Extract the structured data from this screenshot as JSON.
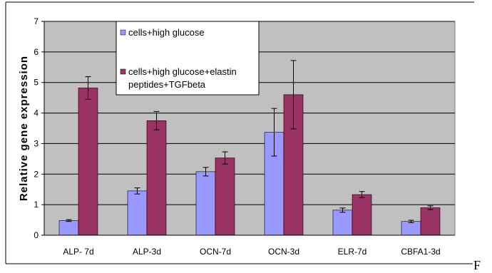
{
  "chart_data": {
    "type": "bar",
    "title": "",
    "xlabel": "",
    "ylabel": "Relative gene expression",
    "ylim": [
      0,
      7
    ],
    "yticks": [
      "0",
      "1",
      "2",
      "3",
      "4",
      "5",
      "6",
      "7"
    ],
    "grid": true,
    "legend_position": "top-left",
    "categories": [
      "ALP- 7d",
      "ALP-3d",
      "OCN-7d",
      "OCN-3d",
      "ELR-7d",
      "CBFA1-3d"
    ],
    "series": [
      {
        "name": "cells+high glucose",
        "color": "#9999ff",
        "values": [
          0.48,
          1.45,
          2.08,
          3.37,
          0.82,
          0.45
        ],
        "errors": [
          0.03,
          0.1,
          0.14,
          0.78,
          0.07,
          0.04
        ]
      },
      {
        "name": "cells+high glucose+elastin peptides+TGFbeta",
        "legend_lines": [
          "cells+high glucose+elastin",
          "peptides+TGFbeta"
        ],
        "color": "#993366",
        "values": [
          4.82,
          3.75,
          2.53,
          4.6,
          1.33,
          0.9
        ],
        "errors": [
          0.37,
          0.3,
          0.2,
          1.12,
          0.1,
          0.06
        ]
      }
    ],
    "plot_background": "#c0c0c0"
  },
  "page": {
    "trailing_glyph": "F"
  }
}
